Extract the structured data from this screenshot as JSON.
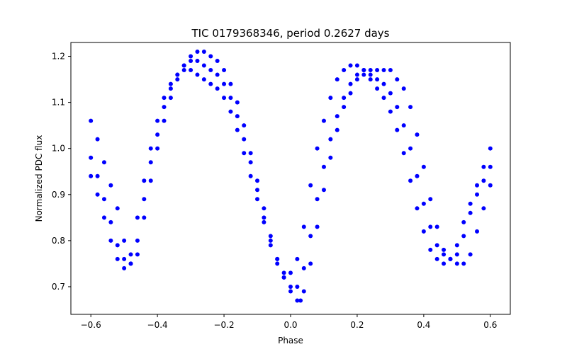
{
  "chart_data": {
    "type": "scatter",
    "title": "TIC 0179368346, period 0.2627 days",
    "xlabel": "Phase",
    "ylabel": "Normalized PDC flux",
    "xlim": [
      -0.66,
      0.66
    ],
    "ylim": [
      0.64,
      1.23
    ],
    "xticks": [
      -0.6,
      -0.4,
      -0.2,
      0.0,
      0.2,
      0.4,
      0.6
    ],
    "xtick_labels": [
      "−0.6",
      "−0.4",
      "−0.2",
      "0.0",
      "0.2",
      "0.4",
      "0.6"
    ],
    "yticks": [
      0.7,
      0.8,
      0.9,
      1.0,
      1.1,
      1.2
    ],
    "ytick_labels": [
      "0.7",
      "0.8",
      "0.9",
      "1.0",
      "1.1",
      "1.2"
    ],
    "grid": false,
    "legend": "none",
    "marker_color": "#0000ff",
    "series": [
      {
        "name": "",
        "x": [
          -0.6,
          -0.58,
          -0.56,
          -0.54,
          -0.52,
          -0.5,
          -0.48,
          -0.46,
          -0.44,
          -0.42,
          -0.4,
          -0.38,
          -0.36,
          -0.34,
          -0.32,
          -0.3,
          -0.28,
          -0.26,
          -0.24,
          -0.22,
          -0.2,
          -0.18,
          -0.16,
          -0.14,
          -0.12,
          -0.1,
          -0.08,
          -0.06,
          -0.04,
          -0.02,
          0.0,
          0.02,
          0.03,
          0.04,
          0.06,
          0.08,
          0.1,
          0.12,
          0.14,
          0.16,
          0.18,
          0.2,
          0.22,
          0.24,
          0.26,
          0.28,
          0.3,
          0.32,
          0.34,
          0.36,
          0.38,
          0.4,
          0.42,
          0.44,
          0.46,
          0.48,
          0.5,
          0.52,
          0.54,
          0.56,
          0.58,
          0.6
        ],
        "y": [
          1.06,
          1.02,
          0.97,
          0.92,
          0.87,
          0.8,
          0.75,
          0.77,
          0.85,
          0.93,
          1.0,
          1.06,
          1.11,
          1.15,
          1.18,
          1.2,
          1.21,
          1.21,
          1.2,
          1.19,
          1.17,
          1.14,
          1.1,
          1.05,
          0.99,
          0.93,
          0.87,
          0.81,
          0.76,
          0.72,
          0.69,
          0.67,
          0.67,
          0.69,
          0.75,
          0.83,
          0.91,
          0.98,
          1.04,
          1.09,
          1.12,
          1.15,
          1.16,
          1.17,
          1.17,
          1.17,
          1.17,
          1.15,
          1.13,
          1.09,
          1.03,
          0.96,
          0.89,
          0.83,
          0.78,
          0.76,
          0.75,
          0.75,
          0.77,
          0.82,
          0.87,
          0.92
        ]
      },
      {
        "name": "",
        "x": [
          -0.6,
          -0.58,
          -0.56,
          -0.54,
          -0.52,
          -0.5,
          -0.48,
          -0.46,
          -0.44,
          -0.42,
          -0.4,
          -0.38,
          -0.36,
          -0.34,
          -0.32,
          -0.3,
          -0.28,
          -0.26,
          -0.24,
          -0.22,
          -0.2,
          -0.18,
          -0.16,
          -0.14,
          -0.12,
          -0.1,
          -0.08,
          -0.06,
          -0.04,
          -0.02,
          0.0,
          0.02,
          0.04,
          0.06,
          0.08,
          0.1,
          0.12,
          0.14,
          0.16,
          0.18,
          0.2,
          0.22,
          0.24,
          0.26,
          0.28,
          0.3,
          0.32,
          0.34,
          0.36,
          0.38,
          0.4,
          0.42,
          0.44,
          0.46,
          0.48,
          0.5,
          0.52,
          0.54,
          0.56,
          0.58,
          0.6
        ],
        "y": [
          0.94,
          0.9,
          0.85,
          0.8,
          0.76,
          0.74,
          0.77,
          0.85,
          0.93,
          1.0,
          1.06,
          1.11,
          1.14,
          1.16,
          1.17,
          1.17,
          1.16,
          1.15,
          1.14,
          1.13,
          1.11,
          1.08,
          1.04,
          0.99,
          0.94,
          0.89,
          0.84,
          0.79,
          0.75,
          0.73,
          0.73,
          0.76,
          0.83,
          0.92,
          1.0,
          1.06,
          1.11,
          1.15,
          1.17,
          1.18,
          1.18,
          1.17,
          1.15,
          1.13,
          1.11,
          1.08,
          1.04,
          0.99,
          0.93,
          0.87,
          0.82,
          0.78,
          0.76,
          0.75,
          0.76,
          0.79,
          0.84,
          0.88,
          0.92,
          0.96,
          1.0
        ]
      },
      {
        "name": "",
        "x": [
          -0.6,
          -0.58,
          -0.56,
          -0.54,
          -0.52,
          -0.5,
          -0.48,
          -0.46,
          -0.44,
          -0.42,
          -0.4,
          -0.38,
          -0.36,
          -0.34,
          -0.32,
          -0.3,
          -0.28,
          -0.26,
          -0.24,
          -0.22,
          -0.2,
          -0.18,
          -0.16,
          -0.14,
          -0.12,
          -0.1,
          -0.08,
          -0.06,
          -0.04,
          -0.02,
          0.0,
          0.02,
          0.04,
          0.06,
          0.08,
          0.1,
          0.12,
          0.14,
          0.16,
          0.18,
          0.2,
          0.22,
          0.24,
          0.26,
          0.28,
          0.3,
          0.32,
          0.34,
          0.36,
          0.38,
          0.4,
          0.42,
          0.44,
          0.46,
          0.48,
          0.5,
          0.52,
          0.54,
          0.56,
          0.58,
          0.6
        ],
        "y": [
          0.98,
          0.94,
          0.89,
          0.84,
          0.79,
          0.76,
          0.75,
          0.8,
          0.89,
          0.97,
          1.03,
          1.09,
          1.13,
          1.16,
          1.18,
          1.19,
          1.19,
          1.18,
          1.17,
          1.16,
          1.14,
          1.11,
          1.07,
          1.02,
          0.97,
          0.91,
          0.85,
          0.8,
          0.76,
          0.72,
          0.7,
          0.7,
          0.74,
          0.81,
          0.89,
          0.96,
          1.02,
          1.07,
          1.11,
          1.14,
          1.16,
          1.17,
          1.16,
          1.15,
          1.14,
          1.12,
          1.09,
          1.05,
          1.0,
          0.94,
          0.88,
          0.83,
          0.79,
          0.77,
          0.76,
          0.77,
          0.81,
          0.86,
          0.9,
          0.93,
          0.96
        ]
      }
    ]
  }
}
